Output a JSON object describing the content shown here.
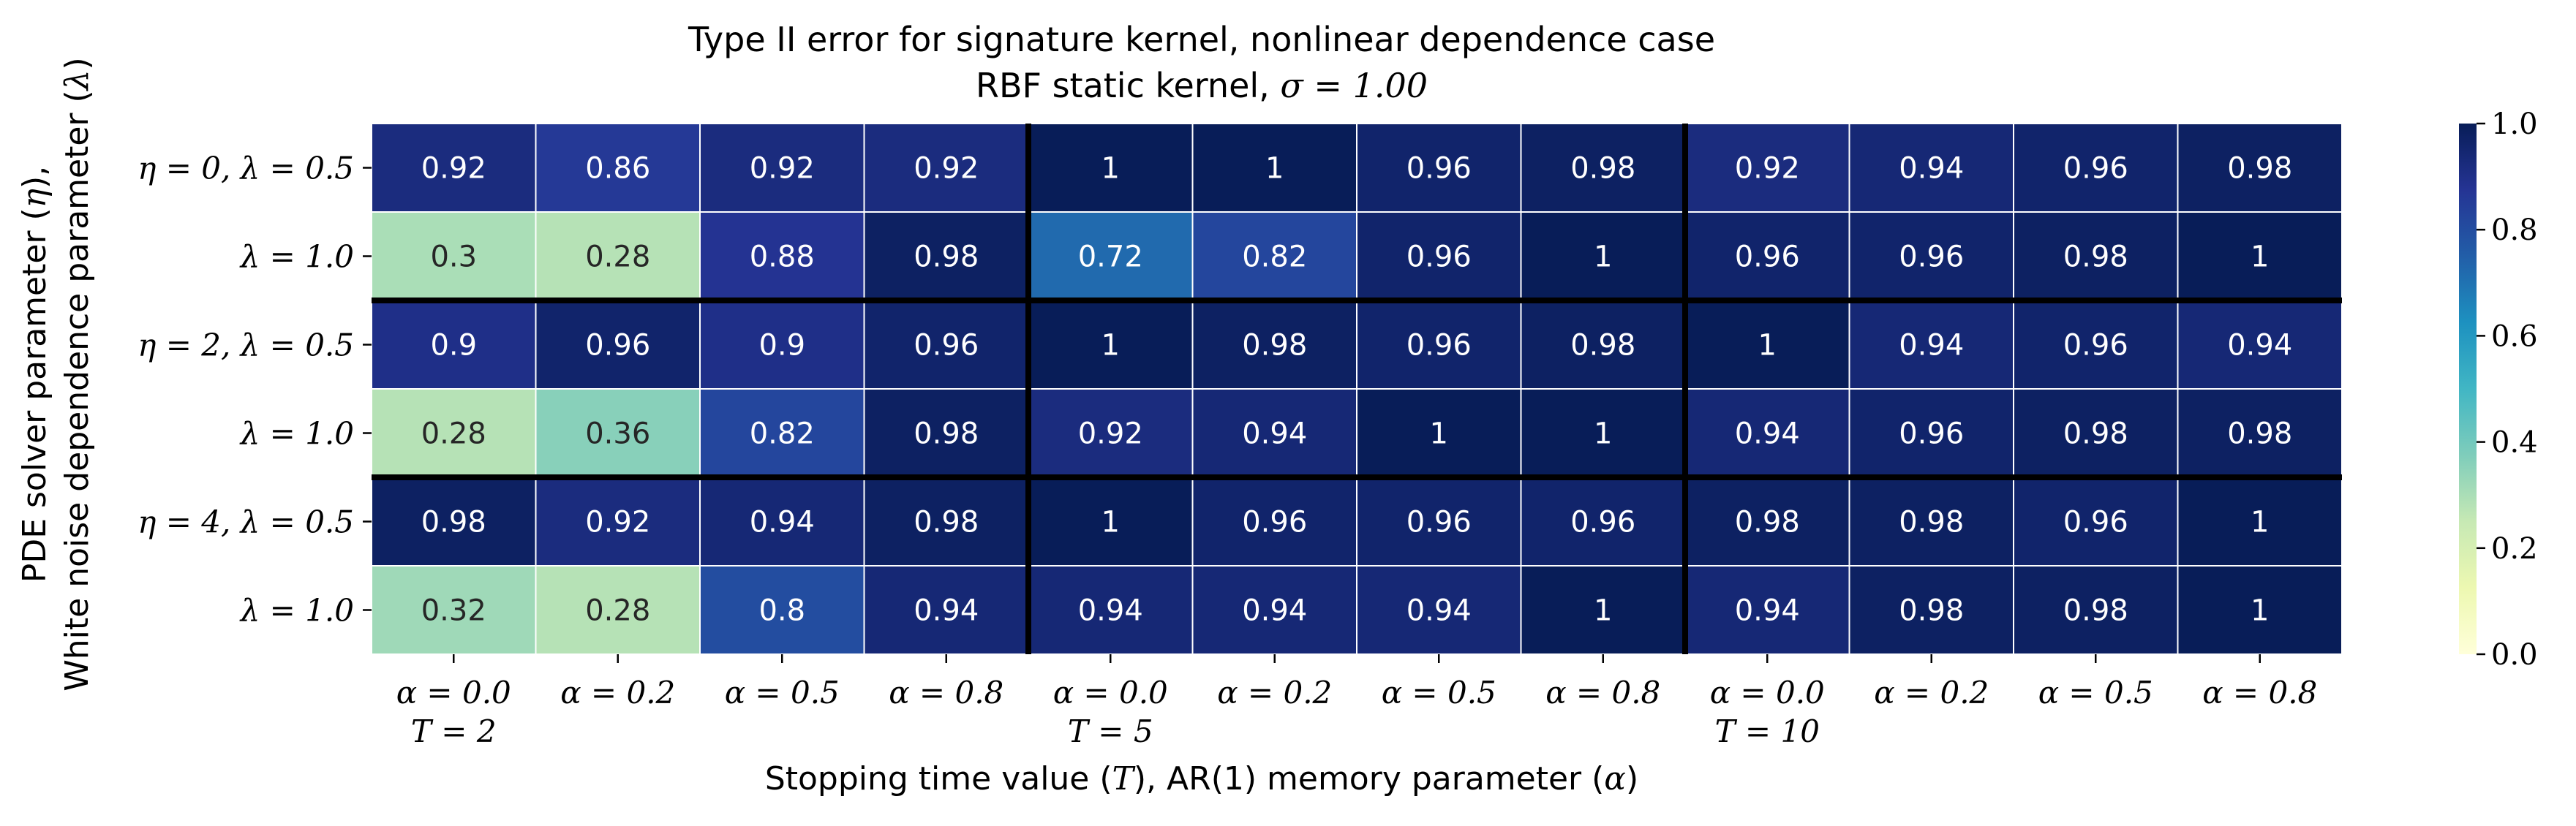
{
  "chart_data": {
    "type": "heatmap",
    "title": "Type II error for signature kernel, nonlinear dependence case",
    "subtitle_prefix": "RBF static kernel, ",
    "subtitle_math": "σ = 1.00",
    "xlabel": {
      "text_before": "Stopping time value (",
      "var1": "T",
      "text_mid": "), AR(1) memory parameter (",
      "var2": "α",
      "text_after": ")"
    },
    "ylabel": {
      "line1_text": "PDE solver parameter (",
      "line1_var": "η",
      "line1_after": "),",
      "line2_text": "White noise dependence parameter (",
      "line2_var": "λ",
      "line2_after": ")"
    },
    "x_tick_labels": [
      "α = 0.0",
      "α = 0.2",
      "α = 0.5",
      "α = 0.8",
      "α = 0.0",
      "α = 0.2",
      "α = 0.5",
      "α = 0.8",
      "α = 0.0",
      "α = 0.2",
      "α = 0.5",
      "α = 0.8"
    ],
    "x_group_labels": [
      {
        "col": 0,
        "label": "T = 2"
      },
      {
        "col": 4,
        "label": "T = 5"
      },
      {
        "col": 8,
        "label": "T = 10"
      }
    ],
    "y_tick_labels": [
      "η = 0, λ = 0.5",
      "λ = 1.0",
      "η = 2, λ = 0.5",
      "λ = 1.0",
      "η = 4, λ = 0.5",
      "λ = 1.0"
    ],
    "values": [
      [
        0.92,
        0.86,
        0.92,
        0.92,
        1,
        1,
        0.96,
        0.98,
        0.92,
        0.94,
        0.96,
        0.98
      ],
      [
        0.3,
        0.28,
        0.88,
        0.98,
        0.72,
        0.82,
        0.96,
        1,
        0.96,
        0.96,
        0.98,
        1
      ],
      [
        0.9,
        0.96,
        0.9,
        0.96,
        1,
        0.98,
        0.96,
        0.98,
        1,
        0.94,
        0.96,
        0.94
      ],
      [
        0.28,
        0.36,
        0.82,
        0.98,
        0.92,
        0.94,
        1,
        1,
        0.94,
        0.96,
        0.98,
        0.98
      ],
      [
        0.98,
        0.92,
        0.94,
        0.98,
        1,
        0.96,
        0.96,
        0.96,
        0.98,
        0.98,
        0.96,
        1
      ],
      [
        0.32,
        0.28,
        0.8,
        0.94,
        0.94,
        0.94,
        0.94,
        1,
        0.94,
        0.98,
        0.98,
        1
      ]
    ],
    "vmin": 0.0,
    "vmax": 1.0,
    "colormap": "YlGnBu",
    "colorbar_ticks": [
      "0.0",
      "0.2",
      "0.4",
      "0.6",
      "0.8",
      "1.0"
    ],
    "group_separator_cols": [
      4,
      8
    ],
    "group_separator_rows": [
      2,
      4
    ]
  }
}
